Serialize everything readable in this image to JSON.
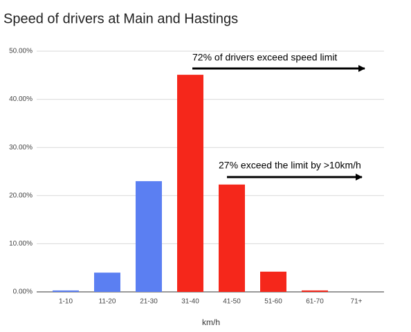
{
  "chart_data": {
    "type": "bar",
    "title": "Speed of drivers at Main and Hastings",
    "x_label": "km/h",
    "categories": [
      "1-10",
      "11-20",
      "21-30",
      "31-40",
      "41-50",
      "51-60",
      "61-70",
      "71+"
    ],
    "values": [
      0.3,
      4.0,
      23.0,
      45.1,
      22.3,
      4.2,
      0.3,
      0
    ],
    "colors": [
      "#5b7ff2",
      "#5b7ff2",
      "#5b7ff2",
      "#f5271b",
      "#f5271b",
      "#f5271b",
      "#f5271b",
      "#f5271b"
    ],
    "ylim": [
      0,
      50
    ],
    "yticks": [
      {
        "value": 0,
        "label": "0.00%"
      },
      {
        "value": 10,
        "label": "10.00%"
      },
      {
        "value": 20,
        "label": "20.00%"
      },
      {
        "value": 30,
        "label": "30.00%"
      },
      {
        "value": 40,
        "label": "40.00%"
      },
      {
        "value": 50,
        "label": "50.00%"
      }
    ],
    "grid": true,
    "annotations": [
      "72% of drivers exceed speed limit",
      "27% exceed the limit by >10km/h"
    ]
  }
}
